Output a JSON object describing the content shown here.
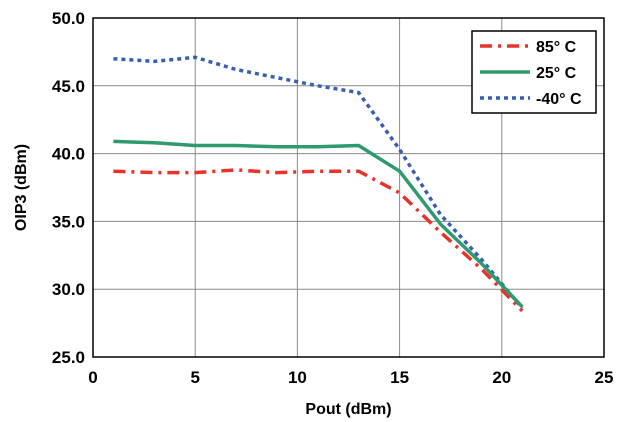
{
  "chart_data": {
    "type": "line",
    "xlabel": "Pout (dBm)",
    "ylabel": "OIP3 (dBm)",
    "xlim": [
      0,
      25
    ],
    "ylim": [
      25.0,
      50.0
    ],
    "xticks": [
      "0",
      "5",
      "10",
      "15",
      "20",
      "25"
    ],
    "yticks": [
      "25.0",
      "30.0",
      "35.0",
      "40.0",
      "45.0",
      "50.0"
    ],
    "grid": true,
    "legend_position": "top-right",
    "series": [
      {
        "name": "85° C",
        "color": "#e8332b",
        "style": "dashdot",
        "points": [
          [
            1,
            38.7
          ],
          [
            3,
            38.6
          ],
          [
            5,
            38.6
          ],
          [
            7,
            38.8
          ],
          [
            9,
            38.6
          ],
          [
            11,
            38.7
          ],
          [
            13,
            38.7
          ],
          [
            15,
            37.1
          ],
          [
            17,
            34.2
          ],
          [
            19,
            31.5
          ],
          [
            21,
            28.4
          ]
        ]
      },
      {
        "name": "25° C",
        "color": "#2e9a6e",
        "style": "solid",
        "points": [
          [
            1,
            40.9
          ],
          [
            3,
            40.8
          ],
          [
            5,
            40.6
          ],
          [
            7,
            40.6
          ],
          [
            9,
            40.5
          ],
          [
            11,
            40.5
          ],
          [
            13,
            40.6
          ],
          [
            15,
            38.7
          ],
          [
            17,
            34.8
          ],
          [
            19,
            31.9
          ],
          [
            21,
            28.7
          ]
        ]
      },
      {
        "name": "-40° C",
        "color": "#3a5fb0",
        "style": "dotted",
        "points": [
          [
            1,
            47.0
          ],
          [
            3,
            46.8
          ],
          [
            5,
            47.1
          ],
          [
            7,
            46.2
          ],
          [
            9,
            45.6
          ],
          [
            11,
            45.0
          ],
          [
            13,
            44.5
          ],
          [
            15,
            40.3
          ],
          [
            17,
            35.5
          ],
          [
            19,
            32.2
          ],
          [
            21,
            28.6
          ]
        ]
      }
    ]
  }
}
